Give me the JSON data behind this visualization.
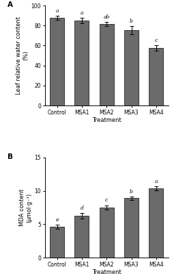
{
  "panel_A": {
    "categories": [
      "Control",
      "MSA1",
      "MSA2",
      "MSA3",
      "MSA4"
    ],
    "values": [
      87.5,
      85.0,
      81.5,
      75.5,
      57.5
    ],
    "errors": [
      2.0,
      2.5,
      2.0,
      4.0,
      2.5
    ],
    "letters": [
      "a",
      "a",
      "ab",
      "b",
      "c"
    ],
    "ylabel_line1": "Leaf relative water content",
    "ylabel_line2": "(%)",
    "xlabel": "Treatment",
    "ylim": [
      0,
      100
    ],
    "yticks": [
      0,
      20,
      40,
      60,
      80,
      100
    ],
    "panel_label": "A"
  },
  "panel_B": {
    "categories": [
      "Control",
      "MSA1",
      "MSA2",
      "MSA3",
      "MSA4"
    ],
    "values": [
      4.6,
      6.3,
      7.5,
      8.9,
      10.4
    ],
    "errors": [
      0.3,
      0.4,
      0.35,
      0.25,
      0.3
    ],
    "letters": [
      "e",
      "d",
      "c",
      "b",
      "a"
    ],
    "ylabel_line1": "MDA content",
    "ylabel_line2": "(μmol·g⁻¹)",
    "xlabel": "Treatment",
    "ylim": [
      0,
      15
    ],
    "yticks": [
      0,
      5,
      10,
      15
    ],
    "panel_label": "B"
  },
  "bar_color": "#6b6b6b",
  "bar_edgecolor": "#222222",
  "bar_width": 0.58,
  "capsize": 2,
  "error_color": "black",
  "letter_fontsize": 5.5,
  "axis_fontsize": 6,
  "tick_fontsize": 5.5,
  "panel_label_fontsize": 7.5
}
